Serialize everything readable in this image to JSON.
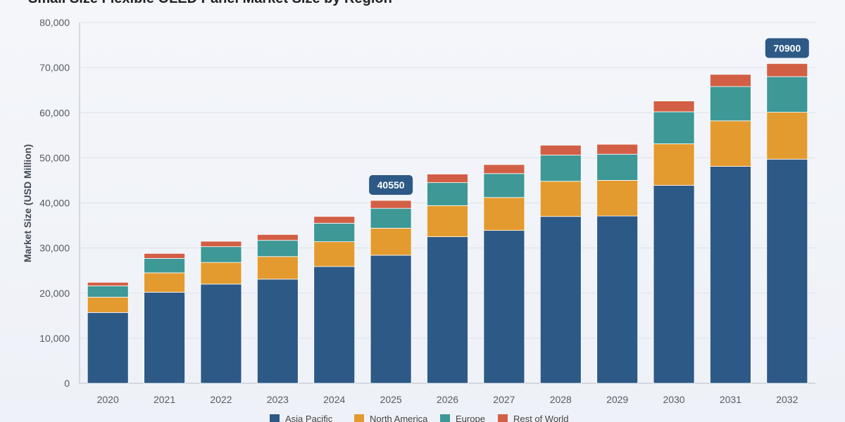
{
  "chart_data": {
    "type": "bar",
    "stacked": true,
    "title": "Small Size Flexible OLED Panel Market Size by Region",
    "xlabel": "",
    "ylabel": "Market Size (USD Million)",
    "ylim": [
      0,
      80000
    ],
    "yticks": [
      0,
      10000,
      20000,
      30000,
      40000,
      50000,
      60000,
      70000,
      80000
    ],
    "ytick_labels": [
      "0",
      "10,000",
      "20,000",
      "30,000",
      "40,000",
      "50,000",
      "60,000",
      "70,000",
      "80,000"
    ],
    "grid": true,
    "legend_position": "bottom",
    "categories": [
      "2020",
      "2021",
      "2022",
      "2023",
      "2024",
      "2025",
      "2026",
      "2027",
      "2028",
      "2029",
      "2030",
      "2031",
      "2032"
    ],
    "series": [
      {
        "name": "Asia Pacific",
        "color": "#2d5986",
        "values": [
          15700,
          20200,
          22000,
          23100,
          25900,
          28400,
          32500,
          33900,
          37000,
          37100,
          43900,
          48100,
          49700
        ]
      },
      {
        "name": "North America",
        "color": "#e39a2e",
        "values": [
          3400,
          4300,
          4800,
          5000,
          5500,
          6000,
          6900,
          7300,
          7800,
          7900,
          9200,
          10100,
          10400
        ]
      },
      {
        "name": "Europe",
        "color": "#3d9896",
        "values": [
          2500,
          3200,
          3500,
          3600,
          4100,
          4400,
          5100,
          5300,
          5800,
          5800,
          7100,
          7600,
          7900
        ]
      },
      {
        "name": "Rest of World",
        "color": "#d25f45",
        "values": [
          800,
          1100,
          1200,
          1300,
          1500,
          1750,
          1900,
          2000,
          2200,
          2200,
          2400,
          2700,
          2900
        ]
      }
    ],
    "callouts": [
      {
        "category": "2025",
        "label": "40550"
      },
      {
        "category": "2032",
        "label": "70900"
      }
    ]
  },
  "colors": {
    "callout_bg": "#2d5986",
    "grid": "#dde2ea",
    "axis": "#b8bec8"
  }
}
